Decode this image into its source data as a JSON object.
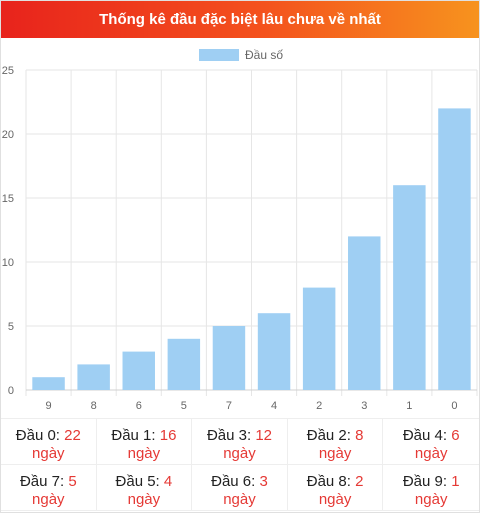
{
  "header": {
    "title": "Thống kê đầu đặc biệt lâu chưa về nhất"
  },
  "chart_data": {
    "type": "bar",
    "categories": [
      "9",
      "8",
      "6",
      "5",
      "7",
      "4",
      "2",
      "3",
      "1",
      "0"
    ],
    "series": [
      {
        "name": "Đầu số",
        "values": [
          1,
          2,
          3,
          4,
          5,
          6,
          8,
          12,
          16,
          22
        ]
      }
    ],
    "ylim": [
      0,
      25
    ],
    "yticks": [
      "0",
      "5",
      "10",
      "15",
      "20",
      "25"
    ],
    "grid": true,
    "legend_position": "top",
    "bar_color": "#9fcff3"
  },
  "stats": [
    {
      "label": "Đầu 0:",
      "value": "22",
      "unit": "ngày"
    },
    {
      "label": "Đầu 1:",
      "value": "16",
      "unit": "ngày"
    },
    {
      "label": "Đầu 3:",
      "value": "12",
      "unit": "ngày"
    },
    {
      "label": "Đầu 2:",
      "value": "8",
      "unit": "ngày"
    },
    {
      "label": "Đầu 4:",
      "value": "6",
      "unit": "ngày"
    },
    {
      "label": "Đầu 7:",
      "value": "5",
      "unit": "ngày"
    },
    {
      "label": "Đầu 5:",
      "value": "4",
      "unit": "ngày"
    },
    {
      "label": "Đầu 6:",
      "value": "3",
      "unit": "ngày"
    },
    {
      "label": "Đầu 8:",
      "value": "2",
      "unit": "ngày"
    },
    {
      "label": "Đầu 9:",
      "value": "1",
      "unit": "ngày"
    }
  ]
}
